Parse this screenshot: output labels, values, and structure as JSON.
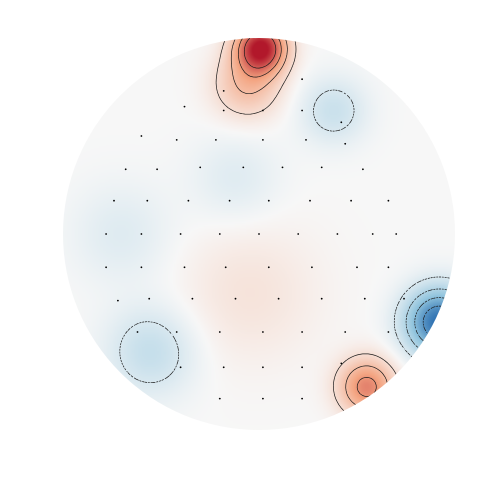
{
  "chart_data": {
    "type": "heatmap",
    "colormap": "RdBu_r",
    "colors": {
      "positive": "#b2182b",
      "negative": "#2166ac",
      "neutral": "#f7f7f7"
    },
    "contour_style": {
      "positive": "solid",
      "negative": "dashed"
    },
    "sensors_shown": true,
    "blobs": [
      {
        "id": "frontal-positive",
        "u": 0.01,
        "v": 0.95,
        "value": 1.0,
        "spread": 0.09
      },
      {
        "id": "frontal-positive-tail",
        "u": -0.06,
        "v": 0.76,
        "value": 0.35,
        "spread": 0.12
      },
      {
        "id": "right-frontal-negative",
        "u": 0.38,
        "v": 0.63,
        "value": -0.22,
        "spread": 0.12
      },
      {
        "id": "mid-frontal-negative",
        "u": -0.12,
        "v": 0.28,
        "value": -0.12,
        "spread": 0.16
      },
      {
        "id": "central-positive",
        "u": -0.05,
        "v": -0.3,
        "value": 0.12,
        "spread": 0.25
      },
      {
        "id": "right-temporal-negative",
        "u": 0.92,
        "v": -0.45,
        "value": -0.95,
        "spread": 0.12
      },
      {
        "id": "right-occipital-positive",
        "u": 0.55,
        "v": -0.78,
        "value": 0.62,
        "spread": 0.1
      },
      {
        "id": "left-occipital-negative",
        "u": -0.55,
        "v": -0.6,
        "value": -0.25,
        "spread": 0.16
      },
      {
        "id": "left-negative",
        "u": -0.7,
        "v": 0.0,
        "value": -0.12,
        "spread": 0.18
      }
    ],
    "contour_levels": [
      -0.75,
      -0.55,
      -0.35,
      -0.15,
      0.15,
      0.35,
      0.55,
      0.75
    ],
    "sensors": [
      [
        -0.18,
        0.73
      ],
      [
        0.22,
        0.79
      ],
      [
        -0.38,
        0.65
      ],
      [
        -0.18,
        0.63
      ],
      [
        0.02,
        0.63
      ],
      [
        0.22,
        0.63
      ],
      [
        0.42,
        0.57
      ],
      [
        -0.6,
        0.5
      ],
      [
        -0.42,
        0.48
      ],
      [
        -0.22,
        0.48
      ],
      [
        0.02,
        0.48
      ],
      [
        0.24,
        0.48
      ],
      [
        0.44,
        0.46
      ],
      [
        -0.68,
        0.33
      ],
      [
        -0.52,
        0.33
      ],
      [
        -0.3,
        0.34
      ],
      [
        -0.08,
        0.34
      ],
      [
        0.12,
        0.34
      ],
      [
        0.32,
        0.34
      ],
      [
        0.53,
        0.33
      ],
      [
        -0.74,
        0.17
      ],
      [
        -0.57,
        0.17
      ],
      [
        -0.36,
        0.17
      ],
      [
        -0.15,
        0.17
      ],
      [
        0.05,
        0.17
      ],
      [
        0.26,
        0.17
      ],
      [
        0.47,
        0.17
      ],
      [
        0.66,
        0.17
      ],
      [
        -0.78,
        0.0
      ],
      [
        -0.6,
        0.0
      ],
      [
        -0.4,
        0.0
      ],
      [
        -0.2,
        0.0
      ],
      [
        0.0,
        0.0
      ],
      [
        0.2,
        0.0
      ],
      [
        0.4,
        0.0
      ],
      [
        0.58,
        0.0
      ],
      [
        0.7,
        0.0
      ],
      [
        -0.78,
        -0.17
      ],
      [
        -0.6,
        -0.17
      ],
      [
        -0.38,
        -0.17
      ],
      [
        -0.17,
        -0.17
      ],
      [
        0.05,
        -0.17
      ],
      [
        0.27,
        -0.17
      ],
      [
        0.5,
        -0.17
      ],
      [
        0.66,
        -0.17
      ],
      [
        -0.72,
        -0.34
      ],
      [
        -0.56,
        -0.33
      ],
      [
        -0.34,
        -0.33
      ],
      [
        -0.12,
        -0.33
      ],
      [
        0.1,
        -0.33
      ],
      [
        0.32,
        -0.33
      ],
      [
        0.54,
        -0.33
      ],
      [
        0.74,
        -0.33
      ],
      [
        -0.62,
        -0.5
      ],
      [
        -0.42,
        -0.5
      ],
      [
        -0.2,
        -0.5
      ],
      [
        0.02,
        -0.5
      ],
      [
        0.22,
        -0.5
      ],
      [
        0.44,
        -0.5
      ],
      [
        0.66,
        -0.5
      ],
      [
        -0.4,
        -0.68
      ],
      [
        -0.18,
        -0.68
      ],
      [
        0.02,
        -0.68
      ],
      [
        0.22,
        -0.68
      ],
      [
        0.42,
        -0.66
      ],
      [
        -0.2,
        -0.84
      ],
      [
        0.02,
        -0.84
      ],
      [
        0.22,
        -0.84
      ]
    ]
  }
}
